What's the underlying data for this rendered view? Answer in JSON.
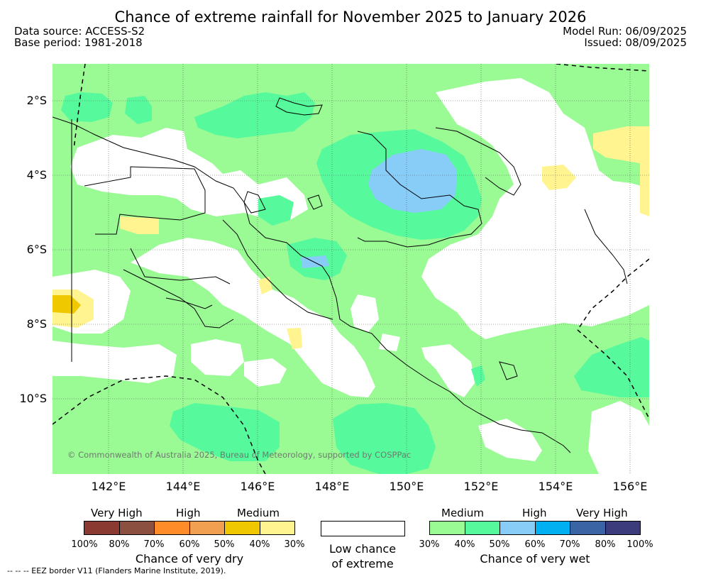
{
  "title": "Chance of extreme rainfall for November 2025 to January 2026",
  "data_source": "Data source: ACCESS-S2",
  "base_period": "Base period: 1981-2018",
  "model_run": "Model Run: 06/09/2025",
  "issued": "Issued: 08/09/2025",
  "lat_labels": [
    "2°S",
    "4°S",
    "6°S",
    "8°S",
    "10°S"
  ],
  "lon_labels": [
    "142°E",
    "144°E",
    "146°E",
    "148°E",
    "150°E",
    "152°E",
    "154°E",
    "156°E"
  ],
  "credit": "© Commonwealth of Australia 2025, Bureau of Meteorology, supported by COSPPac",
  "legend": {
    "dry": {
      "levels": [
        "Very High",
        "High",
        "Medium"
      ],
      "colors": [
        "#8b3a32",
        "#8b5040",
        "#ff8c28",
        "#f0a050",
        "#f0c800",
        "#fff490"
      ],
      "ticks": [
        "100%",
        "80%",
        "70%",
        "60%",
        "50%",
        "40%",
        "30%"
      ],
      "caption": "Chance of very dry"
    },
    "neutral": {
      "color": "#ffffff",
      "caption_line1": "Low chance",
      "caption_line2": "of extreme"
    },
    "wet": {
      "levels": [
        "Medium",
        "High",
        "Very High"
      ],
      "colors": [
        "#9afa94",
        "#56fa9c",
        "#88ccf8",
        "#00b0f0",
        "#3a64a4",
        "#3c3c7c"
      ],
      "ticks": [
        "30%",
        "40%",
        "50%",
        "60%",
        "70%",
        "80%",
        "100%"
      ],
      "caption": "Chance of very wet"
    }
  },
  "footnote": "-- -- -- EEZ border V11 (Flanders Marine Institute, 2019).",
  "palette": {
    "medium_wet": "#9afa94",
    "high_wet_40": "#56fa9c",
    "high_wet_50": "#88ccf8",
    "medium_dry_30": "#fff490",
    "medium_dry_40": "#f0c800"
  }
}
